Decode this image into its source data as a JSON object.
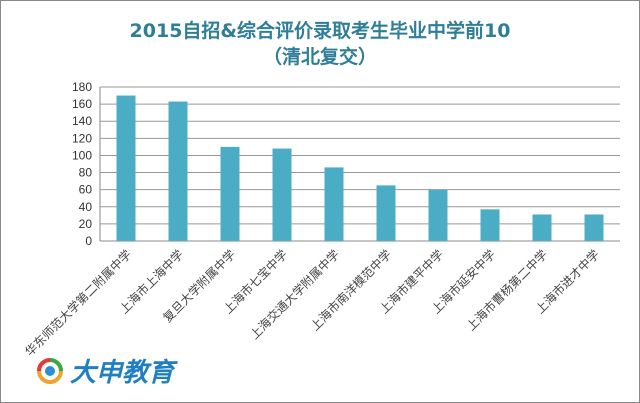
{
  "chart_data": {
    "type": "bar",
    "title": "2015自招&综合评价录取考生毕业中学前10",
    "subtitle": "（清北复交）",
    "categories": [
      "华东师范大学第二附属中学",
      "上海市上海中学",
      "复旦大学附属中学",
      "上海市七宝中学",
      "上海交通大学附属中学",
      "上海市南洋模范中学",
      "上海市建平中学",
      "上海市延安中学",
      "上海市曹杨第二中学",
      "上海市进才中学"
    ],
    "values": [
      170,
      163,
      110,
      108,
      86,
      65,
      60,
      37,
      31,
      31
    ],
    "yticks": [
      "0",
      "20",
      "40",
      "60",
      "80",
      "100",
      "120",
      "140",
      "160",
      "180"
    ],
    "ylim": [
      0,
      180
    ],
    "grid": true,
    "bar_color": "#4bacc6",
    "title_color": "#2f7e98"
  },
  "logo": {
    "text": "大申教育",
    "color": "#1f7fc2"
  }
}
